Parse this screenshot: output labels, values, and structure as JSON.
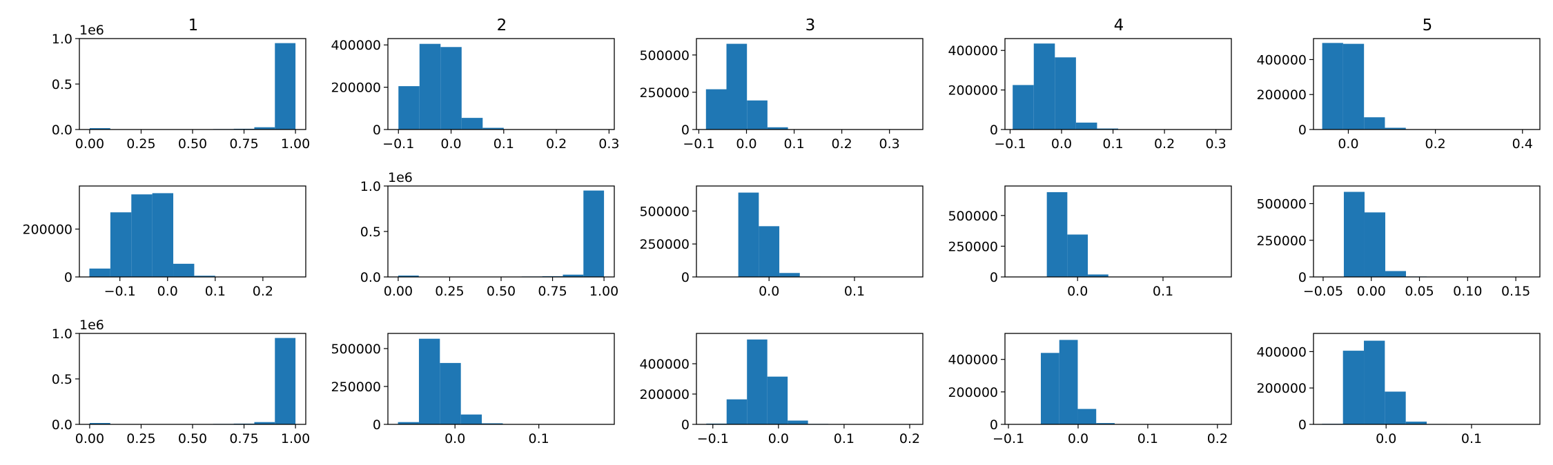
{
  "chart_data": {
    "type": "histogram-grid",
    "rows": 3,
    "cols": 5,
    "column_titles": [
      "1",
      "2",
      "3",
      "4",
      "5"
    ],
    "bar_color": "#1f77b4",
    "panels": [
      {
        "row": 0,
        "col": 0,
        "offset_text": "1e6",
        "xlim": [
          -0.05,
          1.05
        ],
        "ylim": [
          0,
          1.0
        ],
        "xticks": [
          0,
          0.25,
          0.5,
          0.75,
          1.0
        ],
        "xtick_labels": [
          "0.00",
          "0.25",
          "0.50",
          "0.75",
          "1.00"
        ],
        "yticks": [
          0,
          0.5,
          1.0
        ],
        "ytick_labels": [
          "0.0",
          "0.5",
          "1.0"
        ],
        "bin_edges": [
          0,
          0.1,
          0.2,
          0.3,
          0.4,
          0.5,
          0.6,
          0.7,
          0.8,
          0.9,
          1.0
        ],
        "counts": [
          0.015,
          0,
          0,
          0,
          0,
          0,
          0.005,
          0.008,
          0.025,
          0.95
        ]
      },
      {
        "row": 0,
        "col": 1,
        "offset_text": "",
        "xlim": [
          -0.12,
          0.31
        ],
        "ylim": [
          0,
          430000
        ],
        "xticks": [
          -0.1,
          0,
          0.1,
          0.2,
          0.3
        ],
        "xtick_labels": [
          "−0.1",
          "0.0",
          "0.1",
          "0.2",
          "0.3"
        ],
        "yticks": [
          0,
          200000,
          400000
        ],
        "ytick_labels": [
          "0",
          "200000",
          "400000"
        ],
        "bin_edges": [
          -0.1,
          -0.06,
          -0.02,
          0.02,
          0.06,
          0.1,
          0.14,
          0.18,
          0.22,
          0.26,
          0.3
        ],
        "counts": [
          205000,
          405000,
          390000,
          55000,
          8000,
          1000,
          500,
          300,
          200,
          100
        ]
      },
      {
        "row": 0,
        "col": 2,
        "offset_text": "",
        "xlim": [
          -0.105,
          0.37
        ],
        "ylim": [
          0,
          610000
        ],
        "xticks": [
          -0.1,
          0,
          0.1,
          0.2,
          0.3
        ],
        "xtick_labels": [
          "−0.1",
          "0.0",
          "0.1",
          "0.2",
          "0.3"
        ],
        "yticks": [
          0,
          250000,
          500000
        ],
        "ytick_labels": [
          "0",
          "250000",
          "500000"
        ],
        "bin_edges": [
          -0.085,
          -0.042,
          0.001,
          0.044,
          0.087,
          0.13,
          0.173,
          0.216,
          0.259,
          0.302,
          0.345
        ],
        "counts": [
          270000,
          575000,
          195000,
          15000,
          2000,
          500,
          300,
          200,
          100,
          100
        ]
      },
      {
        "row": 0,
        "col": 3,
        "offset_text": "",
        "xlim": [
          -0.11,
          0.33
        ],
        "ylim": [
          0,
          460000
        ],
        "xticks": [
          -0.1,
          0,
          0.1,
          0.2,
          0.3
        ],
        "xtick_labels": [
          "−0.1",
          "0.0",
          "0.1",
          "0.2",
          "0.3"
        ],
        "yticks": [
          0,
          200000,
          400000
        ],
        "ytick_labels": [
          "0",
          "200000",
          "400000"
        ],
        "bin_edges": [
          -0.095,
          -0.054,
          -0.013,
          0.028,
          0.069,
          0.11,
          0.151,
          0.192,
          0.233,
          0.274,
          0.315
        ],
        "counts": [
          225000,
          435000,
          365000,
          35000,
          5000,
          500,
          300,
          200,
          100,
          100
        ]
      },
      {
        "row": 0,
        "col": 4,
        "offset_text": "",
        "xlim": [
          -0.08,
          0.44
        ],
        "ylim": [
          0,
          520000
        ],
        "xticks": [
          0,
          0.2,
          0.4
        ],
        "xtick_labels": [
          "0.0",
          "0.2",
          "0.4"
        ],
        "yticks": [
          0,
          200000,
          400000
        ],
        "ytick_labels": [
          "0",
          "200000",
          "400000"
        ],
        "bin_edges": [
          -0.06,
          -0.012,
          0.036,
          0.084,
          0.132,
          0.18,
          0.228,
          0.276,
          0.324,
          0.372,
          0.42
        ],
        "counts": [
          495000,
          490000,
          70000,
          10000,
          1500,
          500,
          300,
          200,
          100,
          100
        ]
      },
      {
        "row": 1,
        "col": 0,
        "offset_text": "",
        "xlim": [
          -0.185,
          0.29
        ],
        "ylim": [
          0,
          380000
        ],
        "xticks": [
          -0.1,
          0,
          0.1,
          0.2
        ],
        "xtick_labels": [
          "−0.1",
          "0.0",
          "0.1",
          "0.2"
        ],
        "yticks": [
          0,
          200000
        ],
        "ytick_labels": [
          "0",
          "200000"
        ],
        "bin_edges": [
          -0.164,
          -0.12,
          -0.076,
          -0.032,
          0.012,
          0.056,
          0.1,
          0.144,
          0.188,
          0.232,
          0.276
        ],
        "counts": [
          35000,
          270000,
          345000,
          350000,
          55000,
          5000,
          800,
          300,
          200,
          100
        ]
      },
      {
        "row": 1,
        "col": 1,
        "offset_text": "1e6",
        "xlim": [
          -0.05,
          1.05
        ],
        "ylim": [
          0,
          1.0
        ],
        "xticks": [
          0,
          0.25,
          0.5,
          0.75,
          1.0
        ],
        "xtick_labels": [
          "0.00",
          "0.25",
          "0.50",
          "0.75",
          "1.00"
        ],
        "yticks": [
          0,
          0.5,
          1.0
        ],
        "ytick_labels": [
          "0.0",
          "0.5",
          "1.0"
        ],
        "bin_edges": [
          0,
          0.1,
          0.2,
          0.3,
          0.4,
          0.5,
          0.6,
          0.7,
          0.8,
          0.9,
          1.0
        ],
        "counts": [
          0.015,
          0,
          0,
          0,
          0,
          0,
          0.005,
          0.008,
          0.025,
          0.95
        ]
      },
      {
        "row": 1,
        "col": 2,
        "offset_text": "",
        "xlim": [
          -0.085,
          0.18
        ],
        "ylim": [
          0,
          690000
        ],
        "xticks": [
          0,
          0.1
        ],
        "xtick_labels": [
          "0.0",
          "0.1"
        ],
        "yticks": [
          0,
          250000,
          500000
        ],
        "ytick_labels": [
          "0",
          "250000",
          "500000"
        ],
        "bin_edges": [
          -0.06,
          -0.036,
          -0.012,
          0.012,
          0.036,
          0.06,
          0.084,
          0.108,
          0.132,
          0.156,
          0.18
        ],
        "counts": [
          0,
          640000,
          385000,
          30000,
          3000,
          800,
          300,
          200,
          100,
          100
        ]
      },
      {
        "row": 1,
        "col": 3,
        "offset_text": "",
        "xlim": [
          -0.085,
          0.18
        ],
        "ylim": [
          0,
          740000
        ],
        "xticks": [
          0,
          0.1
        ],
        "xtick_labels": [
          "0.0",
          "0.1"
        ],
        "yticks": [
          0,
          250000,
          500000
        ],
        "ytick_labels": [
          "0",
          "250000",
          "500000"
        ],
        "bin_edges": [
          -0.06,
          -0.036,
          -0.012,
          0.012,
          0.036,
          0.06,
          0.084,
          0.108,
          0.132,
          0.156,
          0.18
        ],
        "counts": [
          0,
          690000,
          345000,
          20000,
          2000,
          500,
          300,
          200,
          100,
          100
        ]
      },
      {
        "row": 1,
        "col": 4,
        "offset_text": "",
        "xlim": [
          -0.06,
          0.175
        ],
        "ylim": [
          0,
          620000
        ],
        "xticks": [
          -0.05,
          0,
          0.05,
          0.1,
          0.15
        ],
        "xtick_labels": [
          "−0.05",
          "0.00",
          "0.05",
          "0.10",
          "0.15"
        ],
        "yticks": [
          0,
          250000,
          500000
        ],
        "ytick_labels": [
          "0",
          "250000",
          "500000"
        ],
        "bin_edges": [
          -0.05,
          -0.0285,
          -0.007,
          0.0145,
          0.036,
          0.0575,
          0.079,
          0.1005,
          0.122,
          0.1435,
          0.165
        ],
        "counts": [
          0,
          580000,
          440000,
          40000,
          3000,
          600,
          300,
          200,
          100,
          100
        ]
      },
      {
        "row": 2,
        "col": 0,
        "offset_text": "1e6",
        "xlim": [
          -0.05,
          1.05
        ],
        "ylim": [
          0,
          1.0
        ],
        "xticks": [
          0,
          0.25,
          0.5,
          0.75,
          1.0
        ],
        "xtick_labels": [
          "0.00",
          "0.25",
          "0.50",
          "0.75",
          "1.00"
        ],
        "yticks": [
          0,
          0.5,
          1.0
        ],
        "ytick_labels": [
          "0.0",
          "0.5",
          "1.0"
        ],
        "bin_edges": [
          0,
          0.1,
          0.2,
          0.3,
          0.4,
          0.5,
          0.6,
          0.7,
          0.8,
          0.9,
          1.0
        ],
        "counts": [
          0.015,
          0,
          0,
          0,
          0,
          0,
          0.005,
          0.008,
          0.025,
          0.95
        ]
      },
      {
        "row": 2,
        "col": 1,
        "offset_text": "",
        "xlim": [
          -0.08,
          0.19
        ],
        "ylim": [
          0,
          600000
        ],
        "xticks": [
          0,
          0.1
        ],
        "xtick_labels": [
          "0.0",
          "0.1"
        ],
        "yticks": [
          0,
          250000,
          500000
        ],
        "ytick_labels": [
          "0",
          "250000",
          "500000"
        ],
        "bin_edges": [
          -0.068,
          -0.043,
          -0.018,
          0.007,
          0.032,
          0.057,
          0.082,
          0.107,
          0.132,
          0.157,
          0.182
        ],
        "counts": [
          15000,
          565000,
          405000,
          65000,
          7000,
          1000,
          300,
          200,
          100,
          100
        ]
      },
      {
        "row": 2,
        "col": 2,
        "offset_text": "",
        "xlim": [
          -0.125,
          0.22
        ],
        "ylim": [
          0,
          600000
        ],
        "xticks": [
          -0.1,
          0,
          0.1,
          0.2
        ],
        "xtick_labels": [
          "−0.1",
          "0.0",
          "0.1",
          "0.2"
        ],
        "yticks": [
          0,
          200000,
          400000
        ],
        "ytick_labels": [
          "0",
          "200000",
          "400000"
        ],
        "bin_edges": [
          -0.11,
          -0.079,
          -0.048,
          -0.017,
          0.014,
          0.045,
          0.076,
          0.107,
          0.138,
          0.169,
          0.2
        ],
        "counts": [
          5000,
          165000,
          560000,
          315000,
          25000,
          3000,
          500,
          200,
          100,
          100
        ]
      },
      {
        "row": 2,
        "col": 3,
        "offset_text": "",
        "xlim": [
          -0.105,
          0.22
        ],
        "ylim": [
          0,
          560000
        ],
        "xticks": [
          -0.1,
          0,
          0.1,
          0.2
        ],
        "xtick_labels": [
          "−0.1",
          "0.0",
          "0.1",
          "0.2"
        ],
        "yticks": [
          0,
          200000,
          400000
        ],
        "ytick_labels": [
          "0",
          "200000",
          "400000"
        ],
        "bin_edges": [
          -0.08,
          -0.0535,
          -0.027,
          -0.0005,
          0.026,
          0.0525,
          0.079,
          0.1055,
          0.132,
          0.1585,
          0.185
        ],
        "counts": [
          0,
          440000,
          520000,
          95000,
          8000,
          1000,
          300,
          200,
          100,
          100
        ]
      },
      {
        "row": 2,
        "col": 4,
        "offset_text": "",
        "xlim": [
          -0.085,
          0.18
        ],
        "ylim": [
          0,
          500000
        ],
        "xticks": [
          0,
          0.1
        ],
        "xtick_labels": [
          "0.0",
          "0.1"
        ],
        "yticks": [
          0,
          200000,
          400000
        ],
        "ytick_labels": [
          "0",
          "200000",
          "400000"
        ],
        "bin_edges": [
          -0.075,
          -0.0505,
          -0.026,
          -0.0015,
          0.023,
          0.0475,
          0.072,
          0.0965,
          0.121,
          0.1455,
          0.17
        ],
        "counts": [
          3000,
          405000,
          460000,
          180000,
          15000,
          2000,
          400,
          200,
          100,
          100
        ]
      }
    ]
  }
}
